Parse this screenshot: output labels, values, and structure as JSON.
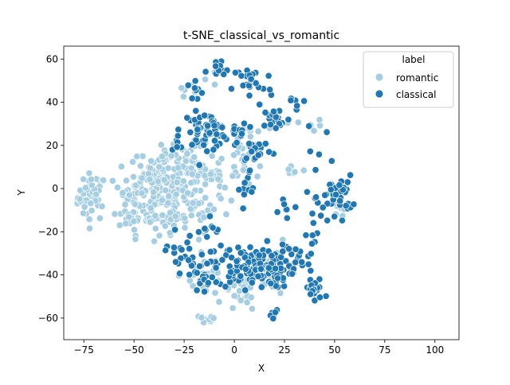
{
  "chart_data": {
    "type": "scatter",
    "title": "t-SNE_classical_vs_romantic",
    "xlabel": "X",
    "ylabel": "Y",
    "xlim": [
      -85,
      112
    ],
    "ylim": [
      -70,
      66
    ],
    "xticks": [
      -75,
      -50,
      -25,
      0,
      25,
      50,
      75,
      100
    ],
    "yticks": [
      -60,
      -40,
      -20,
      0,
      20,
      40,
      60
    ],
    "grid": false,
    "legend": {
      "title": "label",
      "placement": "top-right"
    },
    "series": [
      {
        "name": "romantic",
        "color": "#a6cee3",
        "clusters": [
          {
            "cx": -71,
            "cy": -4,
            "sx": 3.5,
            "sy": 5.5,
            "n": 45
          },
          {
            "cx": -52,
            "cy": -7,
            "sx": 3,
            "sy": 6,
            "n": 18
          },
          {
            "cx": -40,
            "cy": -5,
            "sx": 9,
            "sy": 8,
            "n": 130
          },
          {
            "cx": -36,
            "cy": 9,
            "sx": 7,
            "sy": 5,
            "n": 55
          },
          {
            "cx": -22,
            "cy": 6,
            "sx": 8,
            "sy": 7,
            "n": 75
          },
          {
            "cx": -30,
            "cy": -17,
            "sx": 5,
            "sy": 4,
            "n": 15
          },
          {
            "cx": -15,
            "cy": -10,
            "sx": 4,
            "sy": 4,
            "n": 12
          },
          {
            "cx": -15,
            "cy": -40,
            "sx": 6,
            "sy": 5,
            "n": 35
          },
          {
            "cx": -15,
            "cy": -61,
            "sx": 3,
            "sy": 1.2,
            "n": 10
          },
          {
            "cx": 3,
            "cy": -48,
            "sx": 4,
            "sy": 5,
            "n": 28
          },
          {
            "cx": 6,
            "cy": 12,
            "sx": 6,
            "sy": 6,
            "n": 28
          },
          {
            "cx": 8,
            "cy": 26,
            "sx": 4,
            "sy": 3,
            "n": 8
          },
          {
            "cx": -21,
            "cy": 46,
            "sx": 4,
            "sy": 2,
            "n": 5
          },
          {
            "cx": 38,
            "cy": 29,
            "sx": 4,
            "sy": 1.5,
            "n": 6
          },
          {
            "cx": 30,
            "cy": 10,
            "sx": 3,
            "sy": 2,
            "n": 6
          },
          {
            "cx": 51,
            "cy": -9,
            "sx": 3,
            "sy": 2,
            "n": 6
          },
          {
            "cx": -10,
            "cy": 51,
            "sx": 2,
            "sy": 2,
            "n": 4
          },
          {
            "cx": 20,
            "cy": -38,
            "sx": 7,
            "sy": 6,
            "n": 15
          },
          {
            "cx": -8,
            "cy": 0,
            "sx": 5,
            "sy": 10,
            "n": 12
          }
        ]
      },
      {
        "name": "classical",
        "color": "#1f78b4",
        "clusters": [
          {
            "cx": -14,
            "cy": 27,
            "sx": 6,
            "sy": 4,
            "n": 55
          },
          {
            "cx": -28,
            "cy": 21,
            "sx": 3,
            "sy": 2.5,
            "n": 8
          },
          {
            "cx": -20,
            "cy": 45,
            "sx": 3,
            "sy": 3,
            "n": 8
          },
          {
            "cx": -8,
            "cy": 54,
            "sx": 3,
            "sy": 3,
            "n": 10
          },
          {
            "cx": 9,
            "cy": 48,
            "sx": 5,
            "sy": 5,
            "n": 25
          },
          {
            "cx": 21,
            "cy": 32,
            "sx": 3.5,
            "sy": 3,
            "n": 20
          },
          {
            "cx": 11,
            "cy": 18,
            "sx": 4,
            "sy": 3,
            "n": 18
          },
          {
            "cx": 2,
            "cy": 27,
            "sx": 4,
            "sy": 2,
            "n": 10
          },
          {
            "cx": 8,
            "cy": -1,
            "sx": 3,
            "sy": 5,
            "n": 12
          },
          {
            "cx": -15,
            "cy": -20,
            "sx": 5,
            "sy": 4,
            "n": 10
          },
          {
            "cx": -27,
            "cy": -25,
            "sx": 3,
            "sy": 3,
            "n": 6
          },
          {
            "cx": 10,
            "cy": -36,
            "sx": 10,
            "sy": 5,
            "n": 150
          },
          {
            "cx": -16,
            "cy": -40,
            "sx": 5,
            "sy": 5,
            "n": 25
          },
          {
            "cx": -28,
            "cy": -33,
            "sx": 3,
            "sy": 3,
            "n": 8
          },
          {
            "cx": 20,
            "cy": -59,
            "sx": 1.5,
            "sy": 1.5,
            "n": 7
          },
          {
            "cx": 40,
            "cy": -47,
            "sx": 2.5,
            "sy": 3,
            "n": 22
          },
          {
            "cx": 52,
            "cy": -3,
            "sx": 3.5,
            "sy": 4.5,
            "n": 32
          },
          {
            "cx": 42,
            "cy": -10,
            "sx": 3,
            "sy": 7,
            "n": 10
          },
          {
            "cx": 35,
            "cy": -30,
            "sx": 4,
            "sy": 5,
            "n": 12
          },
          {
            "cx": 30,
            "cy": 40,
            "sx": 3,
            "sy": 2,
            "n": 6
          },
          {
            "cx": 40,
            "cy": 18,
            "sx": 4,
            "sy": 5,
            "n": 6
          },
          {
            "cx": 25,
            "cy": -10,
            "sx": 6,
            "sy": 5,
            "n": 8
          }
        ]
      }
    ]
  }
}
